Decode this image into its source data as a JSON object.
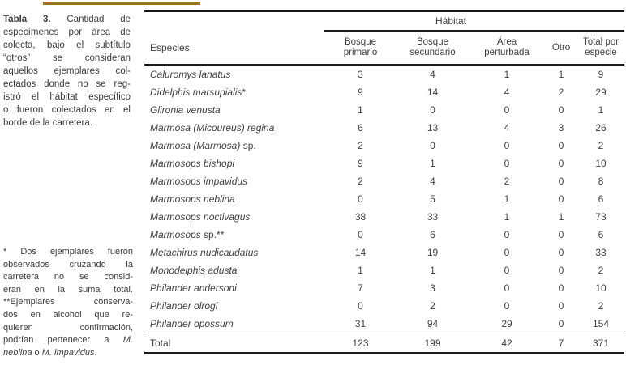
{
  "colors": {
    "gold_rule": "#96731d",
    "table_rule": "#1c1c1c",
    "text": "#3e3e3e"
  },
  "caption": {
    "lines": [
      {
        "parts": [
          {
            "text": "Tabla 3.",
            "bold": true
          },
          {
            "text": " Cantidad de"
          }
        ]
      },
      {
        "parts": [
          {
            "text": "especímenes por área de"
          }
        ]
      },
      {
        "parts": [
          {
            "text": "colecta, bajo el subtítulo"
          }
        ]
      },
      {
        "parts": [
          {
            "text": "“otros” se consideran"
          }
        ]
      },
      {
        "parts": [
          {
            "text": "aquellos ejemplares col-"
          }
        ]
      },
      {
        "parts": [
          {
            "text": "ectados donde no se reg-"
          }
        ]
      },
      {
        "parts": [
          {
            "text": "istró el hábitat específico"
          }
        ]
      },
      {
        "parts": [
          {
            "text": "o fueron colectados en el"
          }
        ]
      },
      {
        "parts": [
          {
            "text": "borde de la carretera."
          }
        ],
        "last": true
      }
    ]
  },
  "footnote": {
    "lines": [
      {
        "parts": [
          {
            "text": "* Dos ejemplares fueron"
          }
        ]
      },
      {
        "parts": [
          {
            "text": "observados cruzando la"
          }
        ]
      },
      {
        "parts": [
          {
            "text": "carretera no se consid-"
          }
        ]
      },
      {
        "parts": [
          {
            "text": "eran en la suma total."
          }
        ]
      },
      {
        "parts": [
          {
            "text": "**Ejemplares conserva-"
          }
        ]
      },
      {
        "parts": [
          {
            "text": "dos en alcohol que re-"
          }
        ]
      },
      {
        "parts": [
          {
            "text": "quieren confirmación,"
          }
        ]
      },
      {
        "parts": [
          {
            "text": "podrían pertenecer a "
          },
          {
            "text": "M.",
            "italic": true
          }
        ]
      },
      {
        "parts": [
          {
            "text": "neblina",
            "italic": true
          },
          {
            "text": " o "
          },
          {
            "text": "M. impavidus",
            "italic": true
          },
          {
            "text": "."
          }
        ],
        "last": true
      }
    ]
  },
  "table": {
    "especies_header": "Especies",
    "habitat_header": "Hábitat",
    "columns": [
      {
        "line1": "Bosque",
        "line2": "primario"
      },
      {
        "line1": "Bosque",
        "line2": "secundario"
      },
      {
        "line1": "Área",
        "line2": "perturbada"
      },
      {
        "line1": "Otro",
        "line2": ""
      },
      {
        "line1": "Total por",
        "line2": "especie"
      }
    ],
    "rows": [
      {
        "italic": "Caluromys lanatus",
        "roman": "",
        "values": [
          3,
          4,
          1,
          1,
          9
        ]
      },
      {
        "italic": "Didelphis marsupialis",
        "roman": "*",
        "values": [
          9,
          14,
          4,
          2,
          29
        ]
      },
      {
        "italic": "Glironia venusta",
        "roman": "",
        "values": [
          1,
          0,
          0,
          0,
          1
        ]
      },
      {
        "italic": "Marmosa (Micoureus) regina",
        "roman": "",
        "values": [
          6,
          13,
          4,
          3,
          26
        ]
      },
      {
        "italic": "Marmosa (Marmosa)",
        "roman": " sp.",
        "values": [
          2,
          0,
          0,
          0,
          2
        ]
      },
      {
        "italic": "Marmosops bishopi",
        "roman": "",
        "values": [
          9,
          1,
          0,
          0,
          10
        ]
      },
      {
        "italic": "Marmosops impavidus",
        "roman": "",
        "values": [
          2,
          4,
          2,
          0,
          8
        ]
      },
      {
        "italic": "Marmosops neblina",
        "roman": "",
        "values": [
          0,
          5,
          1,
          0,
          6
        ]
      },
      {
        "italic": "Marmosops noctivagus",
        "roman": "",
        "values": [
          38,
          33,
          1,
          1,
          73
        ]
      },
      {
        "italic": "Marmosops",
        "roman": " sp.**",
        "values": [
          0,
          6,
          0,
          0,
          6
        ]
      },
      {
        "italic": "Metachirus nudicaudatus",
        "roman": "",
        "values": [
          14,
          19,
          0,
          0,
          33
        ]
      },
      {
        "italic": "Monodelphis adusta",
        "roman": "",
        "values": [
          1,
          1,
          0,
          0,
          2
        ]
      },
      {
        "italic": "Philander andersoni",
        "roman": "",
        "values": [
          7,
          3,
          0,
          0,
          10
        ]
      },
      {
        "italic": "Philander olrogi",
        "roman": "",
        "values": [
          0,
          2,
          0,
          0,
          2
        ]
      },
      {
        "italic": "Philander opossum",
        "roman": "",
        "values": [
          31,
          94,
          29,
          0,
          154
        ]
      }
    ],
    "total_row": {
      "label": "Total",
      "values": [
        123,
        199,
        42,
        7,
        371
      ]
    }
  }
}
